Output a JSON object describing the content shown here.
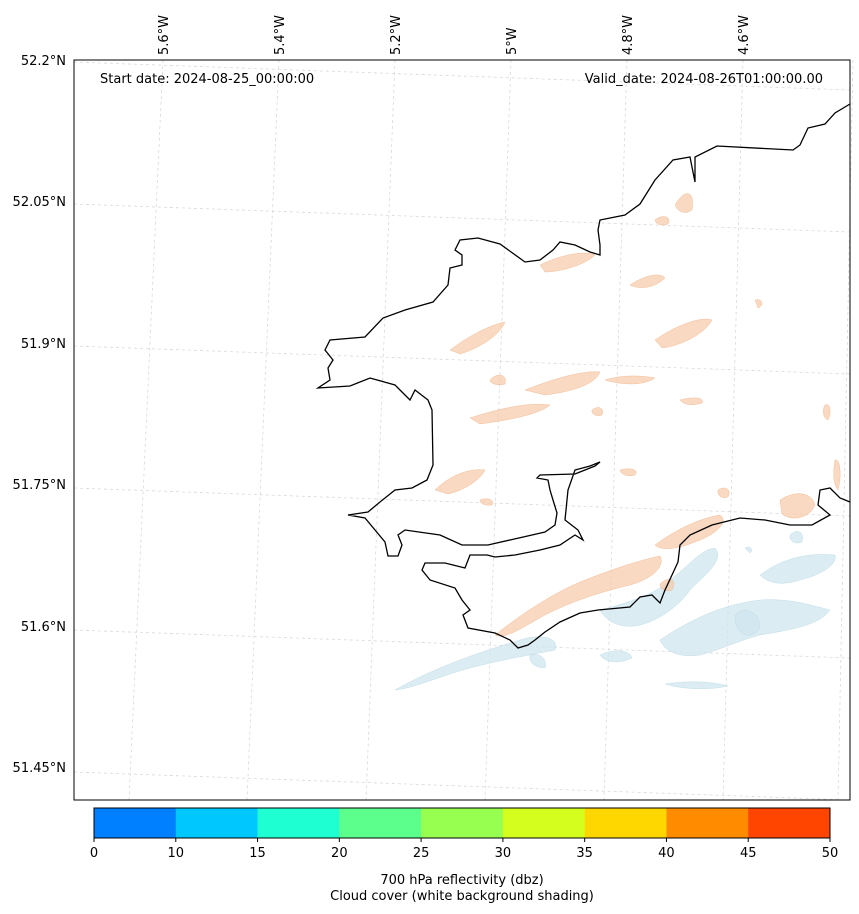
{
  "map": {
    "start_date": "Start date: 2024-08-25_00:00:00",
    "valid_date": "Valid_date: 2024-08-26T01:00:00.00",
    "lon_labels": [
      "5.6°W",
      "5.4°W",
      "5.2°W",
      "5°W",
      "4.8°W",
      "4.6°W"
    ],
    "lat_labels": [
      "52.2°N",
      "52.05°N",
      "51.9°N",
      "51.75°N",
      "51.6°N",
      "51.45°N"
    ],
    "coastline_color": "#000000",
    "gridline_color": "#d9d9d9",
    "reflectivity_shade_color": "#f6c9a6",
    "cloud_shade_color": "#cfe6ee"
  },
  "colorbar": {
    "ticks": [
      "0",
      "10",
      "15",
      "20",
      "25",
      "30",
      "35",
      "40",
      "45",
      "50"
    ],
    "colors": [
      "#0080ff",
      "#00c8ff",
      "#1effd2",
      "#5cff8c",
      "#96ff50",
      "#d4ff1e",
      "#ffd700",
      "#ff8c00",
      "#ff4500"
    ],
    "label_line1": "700 hPa reflectivity (dbz)",
    "label_line2": "Cloud cover (white background shading)"
  }
}
